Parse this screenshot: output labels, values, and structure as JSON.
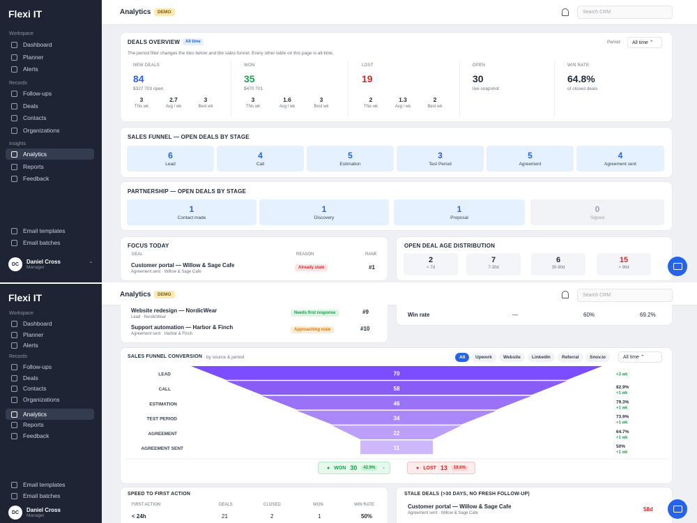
{
  "app": {
    "brand": "Flexi IT",
    "title": "Analytics",
    "demo_badge": "DEMO",
    "search_placeholder": "Search CRM"
  },
  "sidebar": {
    "sections": [
      "Workspace",
      "Records",
      "Insights"
    ],
    "items": [
      {
        "label": "Dashboard",
        "icon": "home-icon"
      },
      {
        "label": "Planner",
        "icon": "calendar-icon"
      },
      {
        "label": "Alerts",
        "icon": "alert-icon"
      },
      {
        "label": "Follow-ups",
        "icon": "reply-icon"
      },
      {
        "label": "Deals",
        "icon": "deal-icon"
      },
      {
        "label": "Contacts",
        "icon": "contacts-icon"
      },
      {
        "label": "Organizations",
        "icon": "building-icon"
      },
      {
        "label": "Analytics",
        "icon": "analytics-icon"
      },
      {
        "label": "Reports",
        "icon": "reports-icon"
      },
      {
        "label": "Feedback",
        "icon": "feedback-icon"
      },
      {
        "label": "Email templates",
        "icon": "mail-icon"
      },
      {
        "label": "Email batches",
        "icon": "batch-icon"
      }
    ],
    "user": {
      "initials": "DC",
      "name": "Daniel Cross",
      "role": "Manager"
    }
  },
  "overview": {
    "title": "DEALS OVERVIEW",
    "chip": "All time",
    "period_label": "Period",
    "period_value": "All time",
    "note": "The period filter changes the tiles below and the sales funnel. Every other table on this page is all-time.",
    "new": {
      "label": "NEW DEALS",
      "value": "84",
      "sub": "$327 703 open",
      "a": "3",
      "al": "This wk",
      "b": "2.7",
      "bl": "Avg / wk",
      "c": "3",
      "cl": "Best wk"
    },
    "won": {
      "label": "WON",
      "value": "35",
      "sub": "$470 701",
      "a": "3",
      "al": "This wk",
      "b": "1.6",
      "bl": "Avg / wk",
      "c": "3",
      "cl": "Best wk"
    },
    "lost": {
      "label": "LOST",
      "value": "19",
      "a": "2",
      "al": "This wk",
      "b": "1.3",
      "bl": "Avg / wk",
      "c": "2",
      "cl": "Best wk"
    },
    "open": {
      "label": "OPEN",
      "value": "30",
      "sub": "live snapshot"
    },
    "winrate": {
      "label": "WIN RATE",
      "value": "64.8%",
      "sub": "of closed deals"
    }
  },
  "sales_stages": {
    "title": "SALES FUNNEL — OPEN DEALS BY STAGE",
    "tiles": [
      {
        "v": "6",
        "l": "Lead"
      },
      {
        "v": "4",
        "l": "Call"
      },
      {
        "v": "5",
        "l": "Estimation"
      },
      {
        "v": "3",
        "l": "Test Period"
      },
      {
        "v": "5",
        "l": "Agreement"
      },
      {
        "v": "4",
        "l": "Agreement sent"
      }
    ]
  },
  "partner_stages": {
    "title": "PARTNERSHIP — OPEN DEALS BY STAGE",
    "tiles": [
      {
        "v": "1",
        "l": "Contact made"
      },
      {
        "v": "1",
        "l": "Discovery"
      },
      {
        "v": "1",
        "l": "Proposal"
      },
      {
        "v": "0",
        "l": "Signed"
      }
    ]
  },
  "focus": {
    "title": "FOCUS TODAY",
    "h_deal": "DEAL",
    "h_reason": "REASON",
    "h_rank": "RANK",
    "rows": [
      {
        "deal": "Customer portal — Willow & Sage Cafe",
        "meta": "Agreement sent · Willow & Sage Cafe",
        "reason": "Already stale",
        "rank": "#1"
      },
      {
        "deal": "Website redesign — NordicWear",
        "meta": "Lead · NordicWear",
        "reason": "Needs first response",
        "rank": "#9"
      },
      {
        "deal": "Support automation — Harbor & Finch",
        "meta": "Agreement sent · Harbor & Finch",
        "reason": "Approaching stale",
        "rank": "#10"
      }
    ]
  },
  "age": {
    "title": "OPEN DEAL AGE DISTRIBUTION",
    "buckets": [
      {
        "v": "2",
        "l": "< 7d"
      },
      {
        "v": "7",
        "l": "7-30d"
      },
      {
        "v": "6",
        "l": "30-90d"
      },
      {
        "v": "15",
        "l": "> 90d"
      }
    ]
  },
  "winrate_row": {
    "label": "Win rate",
    "a": "—",
    "b": "60%",
    "c": "69.2%"
  },
  "conversion": {
    "title": "SALES FUNNEL CONVERSION",
    "subtitle": "· by source & period",
    "filters": [
      "All",
      "Upwork",
      "Website",
      "LinkedIn",
      "Referral",
      "Snov.io"
    ],
    "period": "All time",
    "won_label": "WON",
    "won_value": "30",
    "won_pct": "42.9%",
    "won_extra": "-",
    "lost_label": "LOST",
    "lost_value": "13",
    "lost_pct": "18.6%"
  },
  "chart_data": {
    "type": "bar",
    "categories": [
      "LEAD",
      "CALL",
      "ESTIMATION",
      "TEST PERIOD",
      "AGREEMENT",
      "AGREEMENT SENT"
    ],
    "values": [
      70,
      58,
      46,
      34,
      22,
      11
    ],
    "conversion": [
      "",
      "82.9%",
      "79.3%",
      "73.9%",
      "64.7%",
      "50%"
    ],
    "weekly": [
      "+3 wk",
      "+1 wk",
      "+1 wk",
      "+1 wk",
      "+1 wk",
      "+1 wk"
    ],
    "colors": [
      "#7c4dff",
      "#8a5cf6",
      "#9a72f8",
      "#ab88fa",
      "#bc9ffb",
      "#cdb8fd"
    ]
  },
  "speed": {
    "title": "SPEED TO FIRST ACTION",
    "headers": [
      "FIRST ACTION",
      "DEALS",
      "CLOSED",
      "WON",
      "WIN RATE"
    ],
    "row": [
      "< 24h",
      "21",
      "2",
      "1",
      "50%"
    ]
  },
  "stale": {
    "title": "STALE DEALS (>30 DAYS, NO FRESH FOLLOW-UP)",
    "deal": "Customer portal — Willow & Sage Cafe",
    "meta": "Agreement sent · Willow & Sage Cafe",
    "age": "58d"
  }
}
